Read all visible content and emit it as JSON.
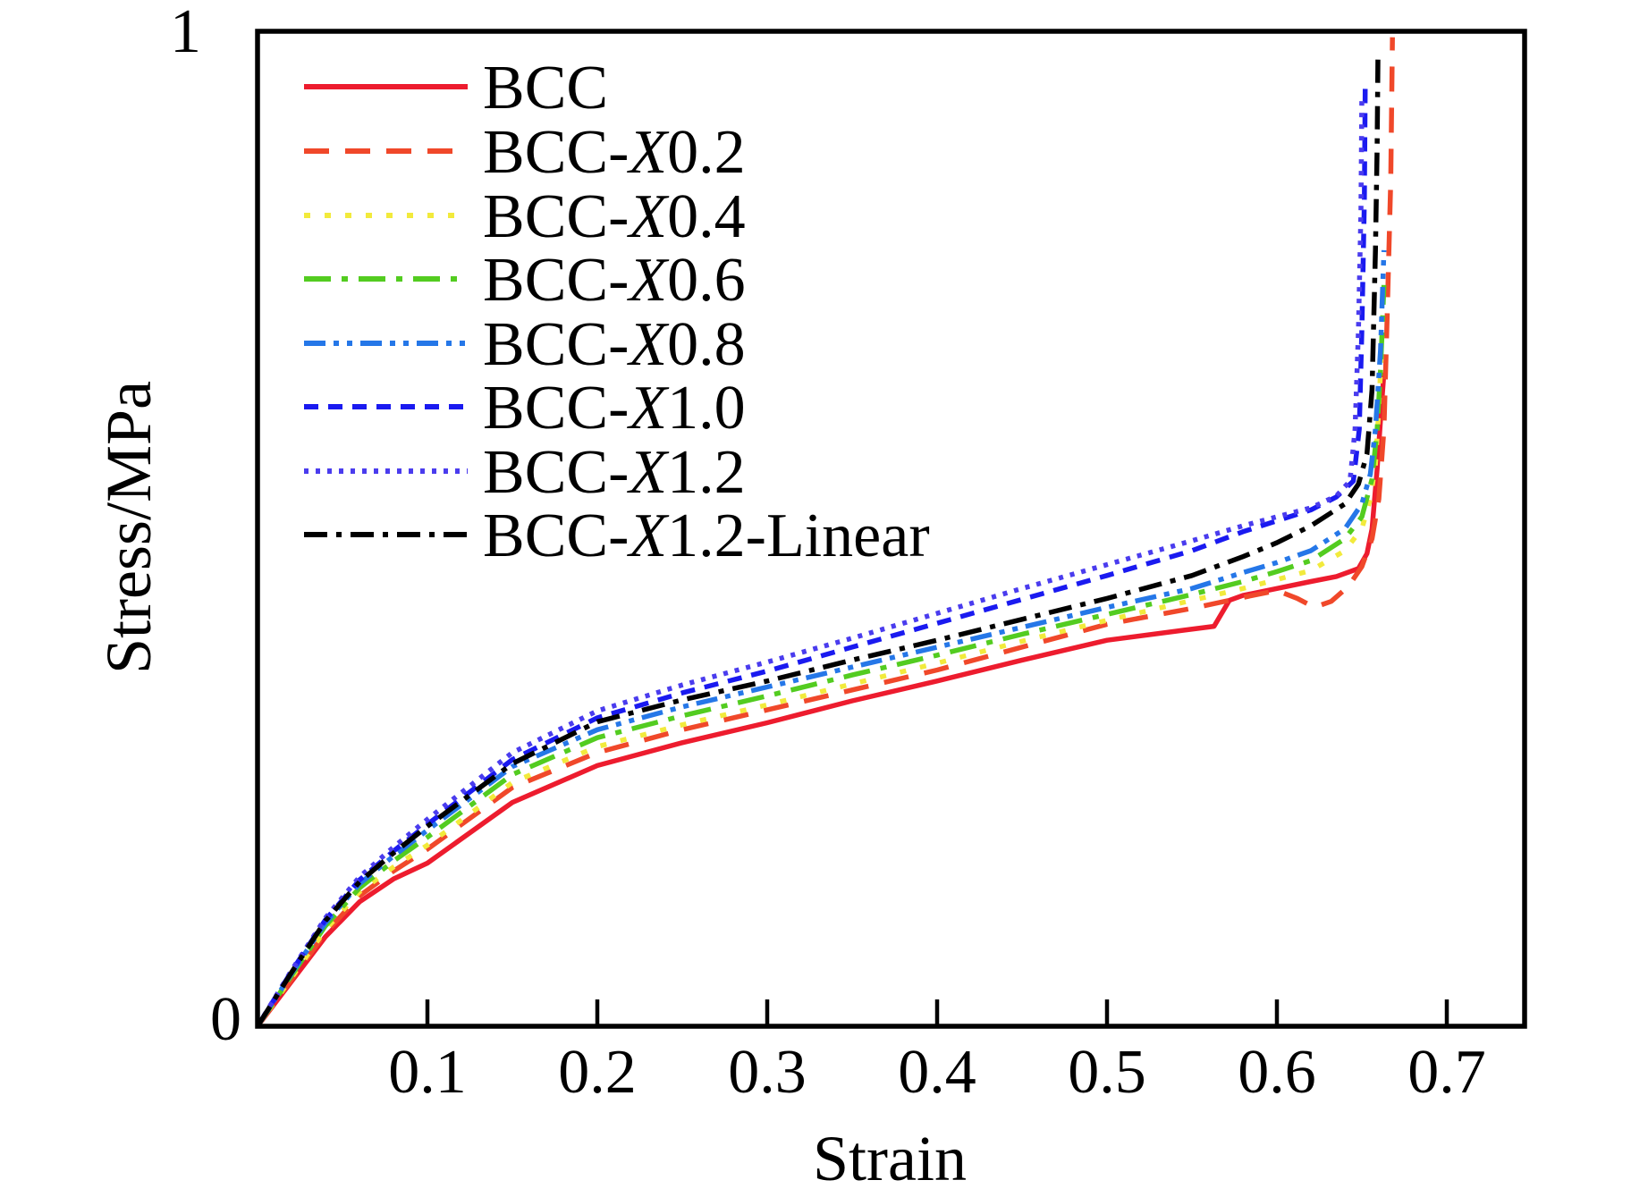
{
  "figure": {
    "background": "#ffffff",
    "frame_color": "#000000"
  },
  "chart_data": {
    "type": "line",
    "title": "",
    "xlabel": "Strain",
    "ylabel": "Stress/MPa",
    "xlim": [
      0,
      0.745
    ],
    "ylim": [
      0,
      1
    ],
    "grid": false,
    "legend_position": "top-left",
    "x_ticks": [
      {
        "value": 0.1,
        "label": "0.1"
      },
      {
        "value": 0.2,
        "label": "0.2"
      },
      {
        "value": 0.3,
        "label": "0.3"
      },
      {
        "value": 0.4,
        "label": "0.4"
      },
      {
        "value": 0.5,
        "label": "0.5"
      },
      {
        "value": 0.6,
        "label": "0.6"
      },
      {
        "value": 0.7,
        "label": "0.7"
      }
    ],
    "y_ticks": [
      {
        "value": 0,
        "label": "0"
      },
      {
        "value": 1,
        "label": "1"
      }
    ],
    "series": [
      {
        "id": "bcc",
        "label": "BCC",
        "color": "#ed1c2e",
        "linestyle": "solid",
        "points": [
          [
            0,
            0
          ],
          [
            0.02,
            0.045
          ],
          [
            0.04,
            0.09
          ],
          [
            0.06,
            0.125
          ],
          [
            0.08,
            0.148
          ],
          [
            0.1,
            0.164
          ],
          [
            0.15,
            0.225
          ],
          [
            0.2,
            0.262
          ],
          [
            0.25,
            0.285
          ],
          [
            0.3,
            0.305
          ],
          [
            0.35,
            0.327
          ],
          [
            0.4,
            0.347
          ],
          [
            0.45,
            0.368
          ],
          [
            0.5,
            0.388
          ],
          [
            0.545,
            0.398
          ],
          [
            0.563,
            0.402
          ],
          [
            0.572,
            0.428
          ],
          [
            0.58,
            0.433
          ],
          [
            0.6,
            0.44
          ],
          [
            0.62,
            0.447
          ],
          [
            0.635,
            0.452
          ],
          [
            0.648,
            0.46
          ],
          [
            0.653,
            0.475
          ],
          [
            0.656,
            0.5
          ],
          [
            0.659,
            0.56
          ],
          [
            0.661,
            0.61
          ],
          [
            0.663,
            0.657
          ]
        ]
      },
      {
        "id": "bcc-x0.2",
        "label": "BCC-X0.2",
        "color": "#f0482a",
        "linestyle": "dashed",
        "points": [
          [
            0,
            0
          ],
          [
            0.02,
            0.047
          ],
          [
            0.04,
            0.094
          ],
          [
            0.06,
            0.131
          ],
          [
            0.08,
            0.156
          ],
          [
            0.1,
            0.178
          ],
          [
            0.15,
            0.24
          ],
          [
            0.2,
            0.275
          ],
          [
            0.25,
            0.298
          ],
          [
            0.3,
            0.318
          ],
          [
            0.35,
            0.338
          ],
          [
            0.4,
            0.358
          ],
          [
            0.45,
            0.381
          ],
          [
            0.5,
            0.404
          ],
          [
            0.55,
            0.42
          ],
          [
            0.58,
            0.431
          ],
          [
            0.6,
            0.438
          ],
          [
            0.612,
            0.43
          ],
          [
            0.622,
            0.421
          ],
          [
            0.632,
            0.427
          ],
          [
            0.642,
            0.442
          ],
          [
            0.65,
            0.462
          ],
          [
            0.656,
            0.49
          ],
          [
            0.66,
            0.53
          ],
          [
            0.663,
            0.6
          ],
          [
            0.665,
            0.72
          ],
          [
            0.667,
            0.85
          ],
          [
            0.668,
            0.994
          ]
        ]
      },
      {
        "id": "bcc-x0.4",
        "label": "BCC-X0.4",
        "color": "#f2ea3c",
        "linestyle": "dotted",
        "points": [
          [
            0,
            0
          ],
          [
            0.02,
            0.049
          ],
          [
            0.04,
            0.097
          ],
          [
            0.06,
            0.135
          ],
          [
            0.08,
            0.16
          ],
          [
            0.1,
            0.182
          ],
          [
            0.15,
            0.245
          ],
          [
            0.2,
            0.281
          ],
          [
            0.25,
            0.303
          ],
          [
            0.3,
            0.323
          ],
          [
            0.35,
            0.344
          ],
          [
            0.4,
            0.365
          ],
          [
            0.45,
            0.387
          ],
          [
            0.5,
            0.408
          ],
          [
            0.55,
            0.428
          ],
          [
            0.58,
            0.44
          ],
          [
            0.6,
            0.449
          ],
          [
            0.62,
            0.458
          ],
          [
            0.64,
            0.478
          ],
          [
            0.65,
            0.5
          ],
          [
            0.655,
            0.53
          ],
          [
            0.658,
            0.565
          ],
          [
            0.66,
            0.62
          ],
          [
            0.662,
            0.7
          ]
        ]
      },
      {
        "id": "bcc-x0.6",
        "label": "BCC-X0.6",
        "color": "#53cc20",
        "linestyle": "longdashdot",
        "points": [
          [
            0,
            0
          ],
          [
            0.02,
            0.051
          ],
          [
            0.04,
            0.101
          ],
          [
            0.06,
            0.139
          ],
          [
            0.08,
            0.166
          ],
          [
            0.1,
            0.19
          ],
          [
            0.15,
            0.253
          ],
          [
            0.2,
            0.29
          ],
          [
            0.25,
            0.312
          ],
          [
            0.3,
            0.332
          ],
          [
            0.35,
            0.353
          ],
          [
            0.4,
            0.373
          ],
          [
            0.45,
            0.394
          ],
          [
            0.5,
            0.414
          ],
          [
            0.55,
            0.434
          ],
          [
            0.58,
            0.447
          ],
          [
            0.6,
            0.457
          ],
          [
            0.62,
            0.468
          ],
          [
            0.64,
            0.49
          ],
          [
            0.65,
            0.512
          ],
          [
            0.656,
            0.55
          ],
          [
            0.659,
            0.6
          ],
          [
            0.661,
            0.66
          ],
          [
            0.663,
            0.745
          ]
        ]
      },
      {
        "id": "bcc-x0.8",
        "label": "BCC-X0.8",
        "color": "#2577e8",
        "linestyle": "dashdotdot",
        "points": [
          [
            0,
            0
          ],
          [
            0.02,
            0.053
          ],
          [
            0.04,
            0.104
          ],
          [
            0.06,
            0.143
          ],
          [
            0.08,
            0.171
          ],
          [
            0.1,
            0.197
          ],
          [
            0.15,
            0.261
          ],
          [
            0.2,
            0.298
          ],
          [
            0.25,
            0.321
          ],
          [
            0.3,
            0.341
          ],
          [
            0.35,
            0.361
          ],
          [
            0.4,
            0.381
          ],
          [
            0.45,
            0.401
          ],
          [
            0.5,
            0.421
          ],
          [
            0.55,
            0.44
          ],
          [
            0.58,
            0.456
          ],
          [
            0.6,
            0.466
          ],
          [
            0.62,
            0.478
          ],
          [
            0.64,
            0.5
          ],
          [
            0.65,
            0.525
          ],
          [
            0.655,
            0.555
          ],
          [
            0.658,
            0.6
          ],
          [
            0.661,
            0.68
          ],
          [
            0.663,
            0.78
          ]
        ]
      },
      {
        "id": "bcc-x1.0",
        "label": "BCC-X1.0",
        "color": "#1a1af0",
        "linestyle": "densedash",
        "points": [
          [
            0,
            0
          ],
          [
            0.02,
            0.055
          ],
          [
            0.04,
            0.107
          ],
          [
            0.06,
            0.147
          ],
          [
            0.08,
            0.176
          ],
          [
            0.1,
            0.203
          ],
          [
            0.15,
            0.268
          ],
          [
            0.2,
            0.31
          ],
          [
            0.25,
            0.335
          ],
          [
            0.3,
            0.357
          ],
          [
            0.35,
            0.381
          ],
          [
            0.4,
            0.405
          ],
          [
            0.45,
            0.429
          ],
          [
            0.5,
            0.453
          ],
          [
            0.55,
            0.478
          ],
          [
            0.58,
            0.497
          ],
          [
            0.6,
            0.508
          ],
          [
            0.62,
            0.519
          ],
          [
            0.635,
            0.532
          ],
          [
            0.645,
            0.548
          ],
          [
            0.6485,
            0.6
          ],
          [
            0.65,
            0.7
          ],
          [
            0.6515,
            0.83
          ],
          [
            0.652,
            0.95
          ]
        ]
      },
      {
        "id": "bcc-x1.2",
        "label": "BCC-X1.2",
        "color": "#4a3cee",
        "linestyle": "densedot",
        "points": [
          [
            0,
            0
          ],
          [
            0.02,
            0.056
          ],
          [
            0.04,
            0.109
          ],
          [
            0.06,
            0.15
          ],
          [
            0.08,
            0.18
          ],
          [
            0.1,
            0.208
          ],
          [
            0.15,
            0.275
          ],
          [
            0.2,
            0.317
          ],
          [
            0.25,
            0.343
          ],
          [
            0.3,
            0.366
          ],
          [
            0.35,
            0.39
          ],
          [
            0.4,
            0.415
          ],
          [
            0.45,
            0.44
          ],
          [
            0.5,
            0.464
          ],
          [
            0.55,
            0.488
          ],
          [
            0.58,
            0.503
          ],
          [
            0.6,
            0.512
          ],
          [
            0.62,
            0.521
          ],
          [
            0.635,
            0.533
          ],
          [
            0.643,
            0.548
          ],
          [
            0.646,
            0.6
          ],
          [
            0.648,
            0.7
          ],
          [
            0.6495,
            0.82
          ],
          [
            0.65,
            0.935
          ]
        ]
      },
      {
        "id": "bcc-x1.2-linear",
        "label": "BCC-X1.2-Linear",
        "color": "#000000",
        "linestyle": "dashdot",
        "points": [
          [
            0,
            0
          ],
          [
            0.02,
            0.054
          ],
          [
            0.04,
            0.106
          ],
          [
            0.06,
            0.145
          ],
          [
            0.08,
            0.174
          ],
          [
            0.1,
            0.201
          ],
          [
            0.15,
            0.264
          ],
          [
            0.2,
            0.306
          ],
          [
            0.25,
            0.328
          ],
          [
            0.3,
            0.347
          ],
          [
            0.35,
            0.368
          ],
          [
            0.4,
            0.388
          ],
          [
            0.45,
            0.409
          ],
          [
            0.5,
            0.43
          ],
          [
            0.55,
            0.453
          ],
          [
            0.58,
            0.472
          ],
          [
            0.6,
            0.486
          ],
          [
            0.62,
            0.503
          ],
          [
            0.64,
            0.525
          ],
          [
            0.648,
            0.545
          ],
          [
            0.653,
            0.575
          ],
          [
            0.656,
            0.64
          ],
          [
            0.658,
            0.78
          ],
          [
            0.659,
            0.885
          ],
          [
            0.6595,
            0.975
          ]
        ]
      }
    ]
  }
}
